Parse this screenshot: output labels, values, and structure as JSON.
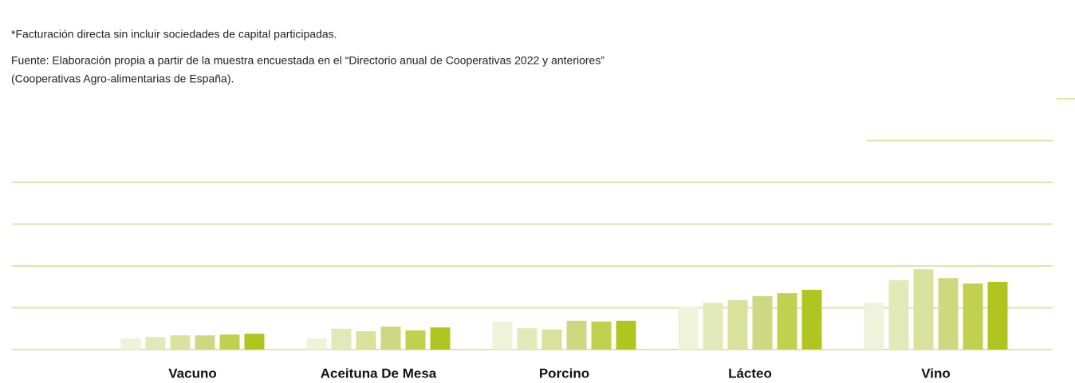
{
  "chart_data": {
    "type": "bar",
    "note": "*Facturación directa sin incluir sociedades de capital participadas.",
    "source": [
      "Fuente: Elaboración propia a partir de la muestra encuestada en el “Directorio anual de Cooperativas 2022 y anteriores”",
      "(Cooperativas Agro-alimentarias de España)."
    ],
    "categories": [
      "Vacuno",
      "Aceituna De Mesa",
      "Porcino",
      "Lácteo",
      "Vino"
    ],
    "series": [
      {
        "color": "#eef3d9",
        "values": [
          0.27,
          0.27,
          0.67,
          1.03,
          1.12
        ]
      },
      {
        "color": "#e2e9b8",
        "values": [
          0.3,
          0.5,
          0.51,
          1.12,
          1.66
        ]
      },
      {
        "color": "#d8e29d",
        "values": [
          0.34,
          0.44,
          0.48,
          1.18,
          1.92
        ]
      },
      {
        "color": "#ccd980",
        "values": [
          0.34,
          0.55,
          0.69,
          1.28,
          1.71
        ]
      },
      {
        "color": "#c1d04f",
        "values": [
          0.36,
          0.46,
          0.67,
          1.35,
          1.58
        ]
      },
      {
        "color": "#b1c521",
        "values": [
          0.38,
          0.53,
          0.69,
          1.43,
          1.62
        ]
      }
    ],
    "ylim": [
      0,
      6
    ],
    "yticks": [
      0,
      1,
      2,
      3,
      4,
      5,
      6
    ],
    "grid": true,
    "grid_color": "#dde6aa"
  }
}
